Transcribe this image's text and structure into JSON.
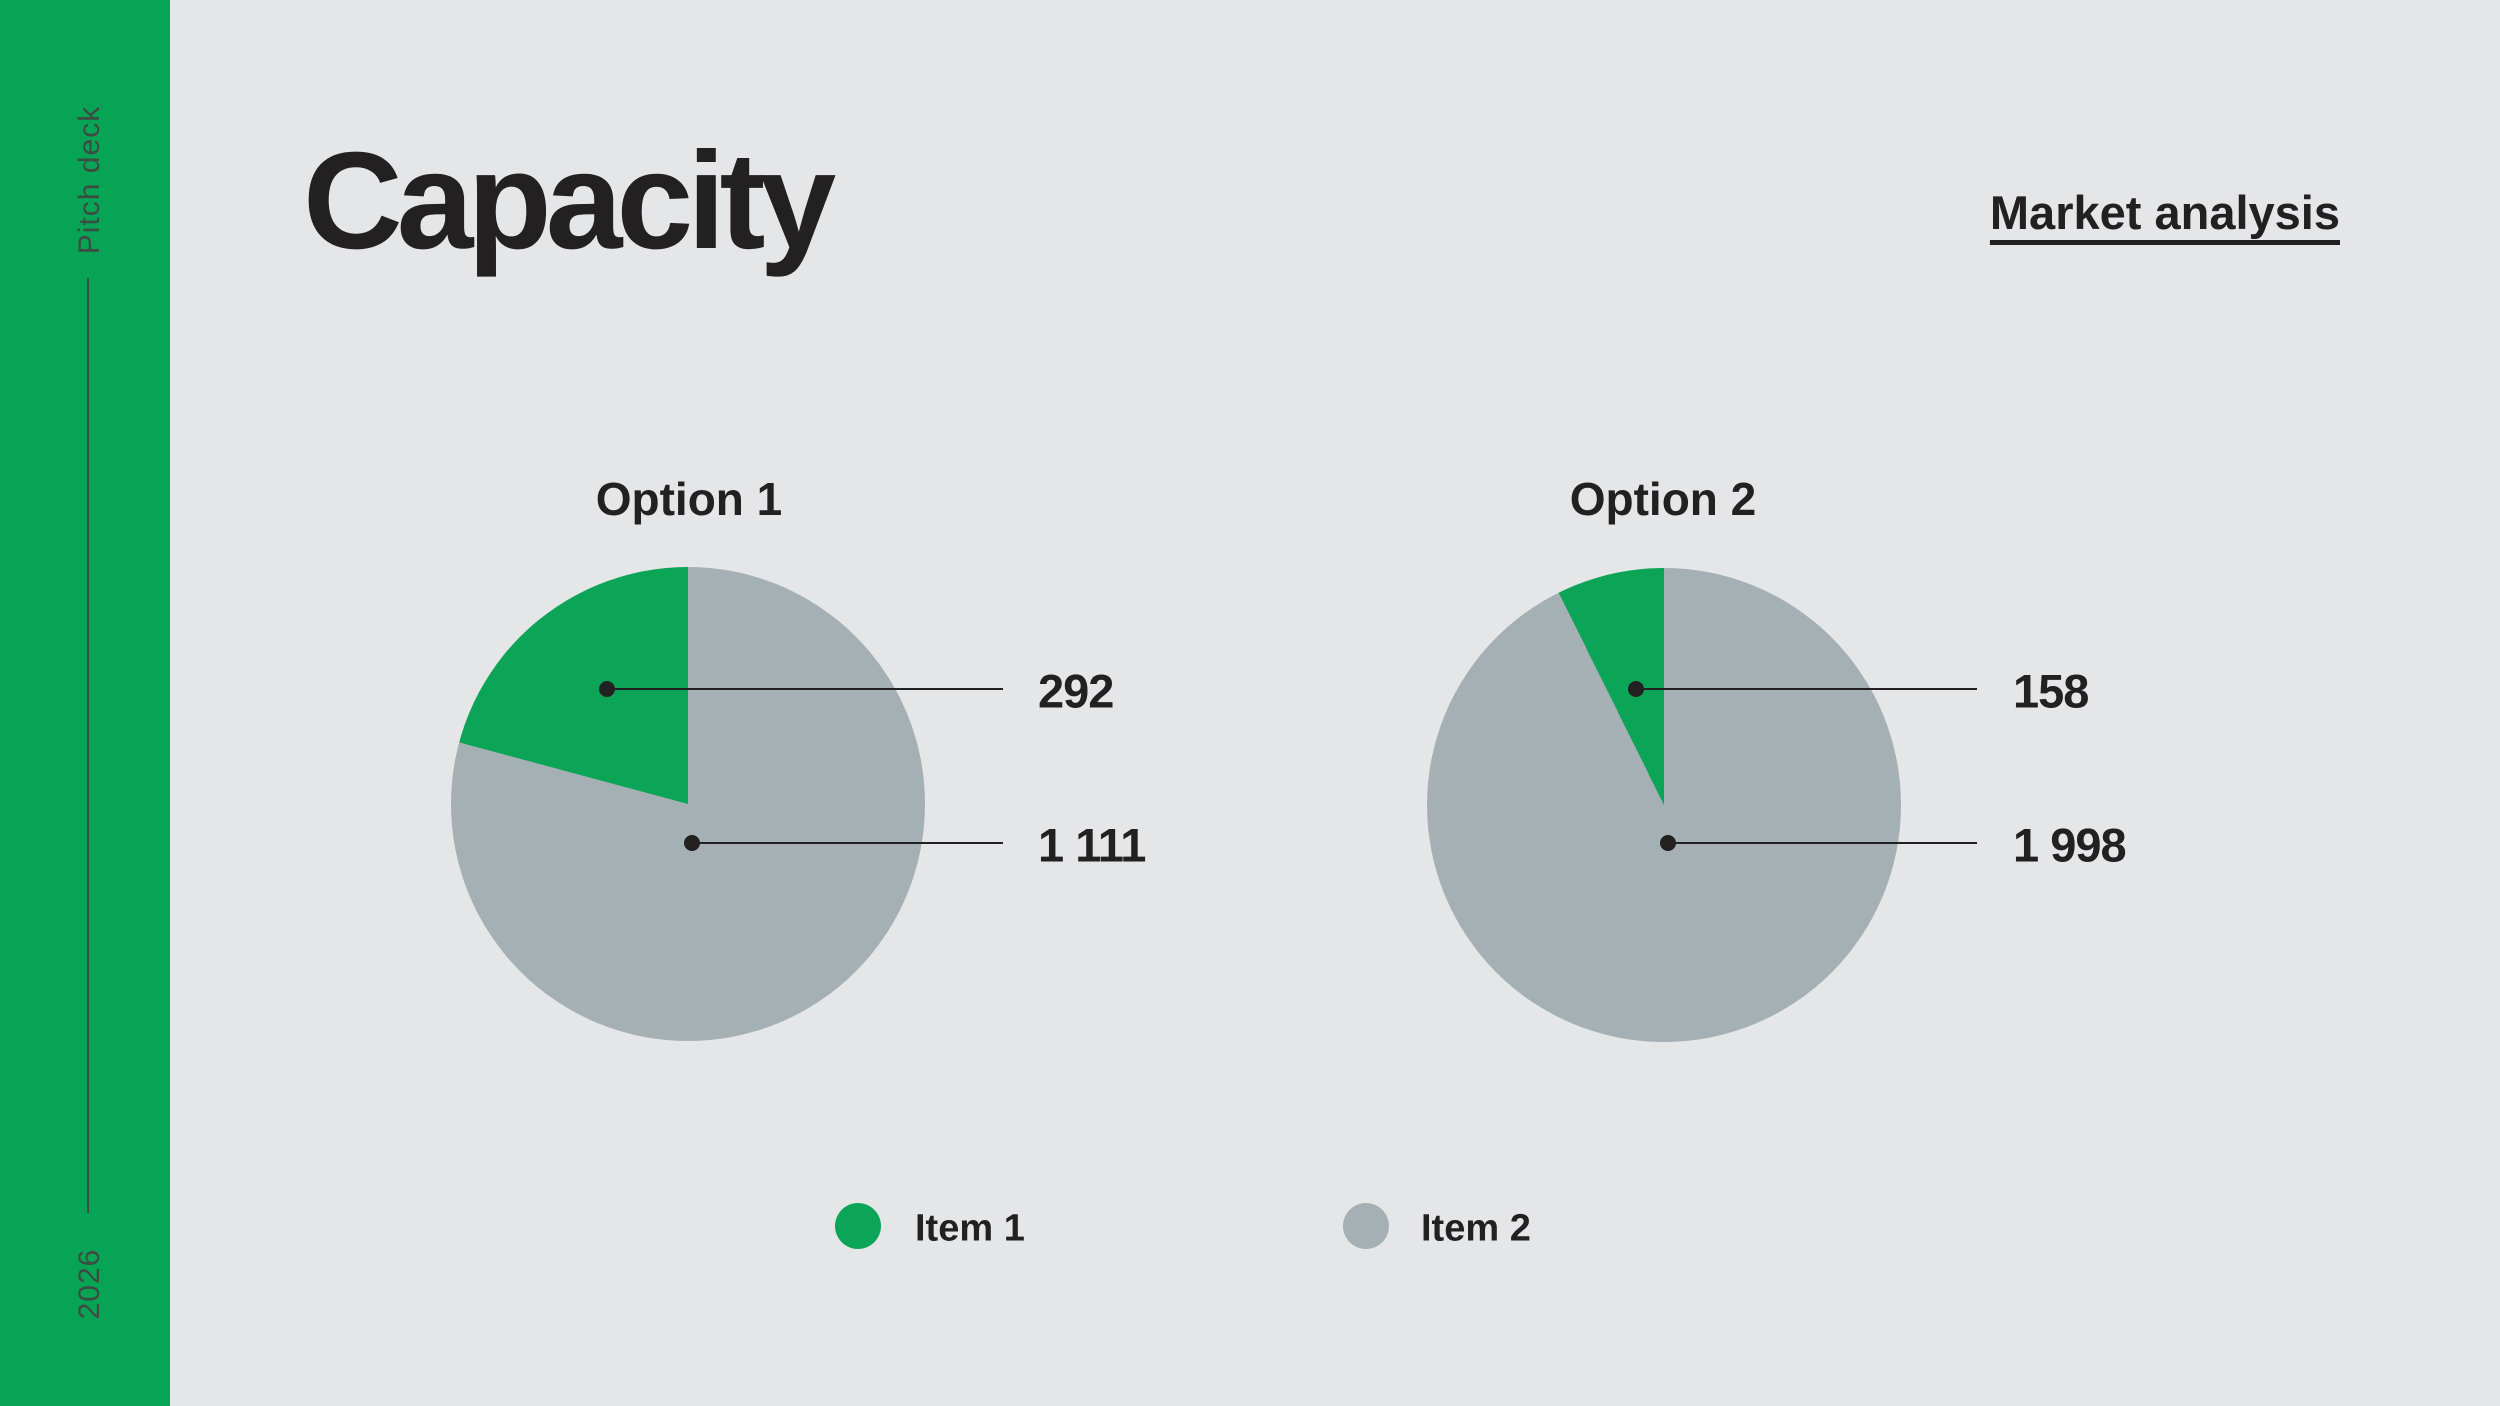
{
  "slide": {
    "deck_label": "Pitch deck",
    "year_label": "2026",
    "title": "Capacity",
    "header_link": "Market analysis"
  },
  "colors": {
    "background": "#e5e6e7",
    "sidebar_green": "#07a456",
    "accent_green": "#0ca558",
    "muted_gray": "#a5b0b4",
    "ink": "#232021",
    "sidebar_text": "#3e4b43"
  },
  "chart_data": [
    {
      "type": "pie",
      "title": "Option 1",
      "start": "top",
      "direction": "counterclockwise",
      "slices": [
        {
          "label": "Item 1",
          "value": 292,
          "display": "292",
          "color_key": "accent_green"
        },
        {
          "label": "Item 2",
          "value": 1111,
          "display": "1 111",
          "color_key": "muted_gray"
        }
      ]
    },
    {
      "type": "pie",
      "title": "Option 2",
      "start": "top",
      "direction": "counterclockwise",
      "slices": [
        {
          "label": "Item 1",
          "value": 158,
          "display": "158",
          "color_key": "accent_green"
        },
        {
          "label": "Item 2",
          "value": 1998,
          "display": "1 998",
          "color_key": "muted_gray"
        }
      ]
    }
  ],
  "legend": {
    "items": [
      {
        "label": "Item 1",
        "color_key": "accent_green"
      },
      {
        "label": "Item 2",
        "color_key": "muted_gray"
      }
    ]
  }
}
